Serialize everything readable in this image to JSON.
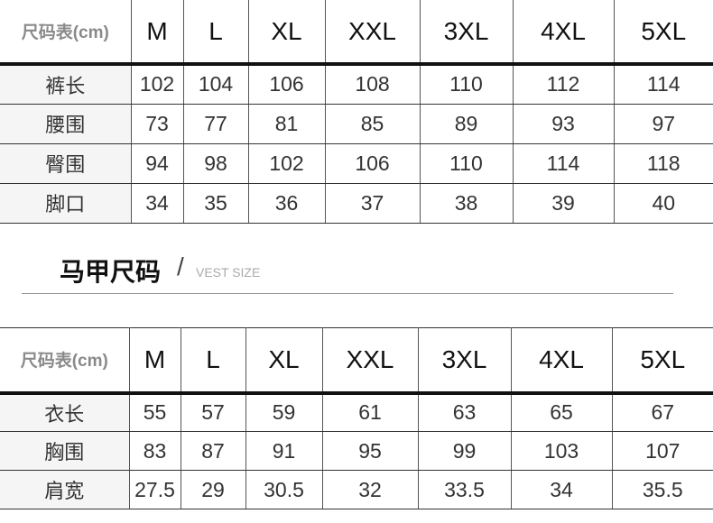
{
  "pants_table": {
    "header_label": "尺码表(cm)",
    "sizes": [
      "M",
      "L",
      "XL",
      "XXL",
      "3XL",
      "4XL",
      "5XL"
    ],
    "rows": [
      {
        "label": "裤长",
        "values": [
          "102",
          "104",
          "106",
          "108",
          "110",
          "112",
          "114"
        ]
      },
      {
        "label": "腰围",
        "values": [
          "73",
          "77",
          "81",
          "85",
          "89",
          "93",
          "97"
        ]
      },
      {
        "label": "臀围",
        "values": [
          "94",
          "98",
          "102",
          "106",
          "110",
          "114",
          "118"
        ]
      },
      {
        "label": "脚口",
        "values": [
          "34",
          "35",
          "36",
          "37",
          "38",
          "39",
          "40"
        ]
      }
    ]
  },
  "vest_section": {
    "title": "马甲尺码",
    "slash": "/",
    "subtitle": "VEST SIZE"
  },
  "vest_table": {
    "header_label": "尺码表(cm)",
    "sizes": [
      "M",
      "L",
      "XL",
      "XXL",
      "3XL",
      "4XL",
      "5XL"
    ],
    "rows": [
      {
        "label": "衣长",
        "values": [
          "55",
          "57",
          "59",
          "61",
          "63",
          "65",
          "67"
        ]
      },
      {
        "label": "胸围",
        "values": [
          "83",
          "87",
          "91",
          "95",
          "99",
          "103",
          "107"
        ]
      },
      {
        "label": "肩宽",
        "values": [
          "27.5",
          "29",
          "30.5",
          "32",
          "33.5",
          "34",
          "35.5"
        ]
      }
    ]
  }
}
